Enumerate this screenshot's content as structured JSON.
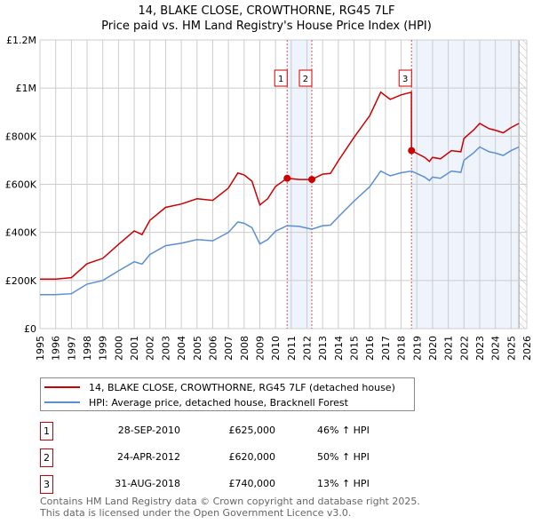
{
  "title": "14, BLAKE CLOSE, CROWTHORNE, RG45 7LF",
  "subtitle": "Price paid vs. HM Land Registry's House Price Index (HPI)",
  "chart_data": {
    "type": "line",
    "title": "14, BLAKE CLOSE, CROWTHORNE, RG45 7LF",
    "subtitle": "Price paid vs. HM Land Registry's House Price Index (HPI)",
    "xlim": [
      1995,
      2026
    ],
    "ylim": [
      0,
      1200000
    ],
    "yticks": [
      0,
      200000,
      400000,
      600000,
      800000,
      1000000,
      1200000
    ],
    "ytick_labels": [
      "£0",
      "£200K",
      "£400K",
      "£600K",
      "£800K",
      "£1M",
      "£1.2M"
    ],
    "xticks": [
      "1995",
      "1996",
      "1997",
      "1998",
      "1999",
      "2000",
      "2001",
      "2002",
      "2003",
      "2004",
      "2005",
      "2006",
      "2007",
      "2008",
      "2009",
      "2010",
      "2011",
      "2012",
      "2013",
      "2014",
      "2015",
      "2016",
      "2017",
      "2018",
      "2019",
      "2020",
      "2021",
      "2022",
      "2023",
      "2024",
      "2025",
      "2026"
    ],
    "grid": true,
    "series": [
      {
        "name": "14, BLAKE CLOSE, CROWTHORNE, RG45 7LF (detached house)",
        "color": "#cc0000",
        "x": [
          1995,
          1996,
          1997,
          1998,
          1999,
          2000,
          2001,
          2001.5,
          2002,
          2003,
          2004,
          2005,
          2006,
          2007,
          2007.6,
          2008,
          2008.5,
          2009,
          2009.5,
          2010,
          2010.74,
          2011.5,
          2012.31,
          2013,
          2013.5,
          2014,
          2015,
          2016,
          2016.7,
          2017.3,
          2018,
          2018.65,
          2018.66,
          2019.5,
          2019.8,
          2020,
          2020.5,
          2021.2,
          2021.8,
          2022,
          2022.6,
          2023,
          2023.6,
          2024,
          2024.5,
          2025,
          2025.5
        ],
        "y": [
          206000,
          206000,
          212000,
          270000,
          292000,
          350000,
          406000,
          391000,
          450000,
          504000,
          518000,
          540000,
          533000,
          584000,
          647000,
          639000,
          613000,
          514000,
          540000,
          591000,
          625000,
          620000,
          620000,
          642000,
          645000,
          698000,
          795000,
          885000,
          983000,
          953000,
          972000,
          983000,
          740000,
          712000,
          695000,
          712000,
          706000,
          740000,
          735000,
          791000,
          825000,
          853000,
          831000,
          825000,
          814000,
          836000,
          853000
        ]
      },
      {
        "name": "HPI: Average price, detached house, Bracknell Forest",
        "color": "#5b8fd4",
        "x": [
          1995,
          1996,
          1997,
          1998,
          1999,
          2000,
          2001,
          2001.5,
          2002,
          2003,
          2004,
          2005,
          2006,
          2007,
          2007.6,
          2008,
          2008.5,
          2009,
          2009.5,
          2010,
          2010.74,
          2011.5,
          2012.31,
          2013,
          2013.5,
          2014,
          2015,
          2016,
          2016.7,
          2017.3,
          2018,
          2018.66,
          2019.5,
          2019.8,
          2020,
          2020.5,
          2021.2,
          2021.8,
          2022,
          2022.6,
          2023,
          2023.6,
          2024,
          2024.5,
          2025,
          2025.5
        ],
        "y": [
          141000,
          141000,
          145000,
          185000,
          200000,
          240000,
          278000,
          268000,
          308000,
          345000,
          355000,
          370000,
          365000,
          400000,
          443000,
          438000,
          420000,
          352000,
          370000,
          405000,
          428000,
          425000,
          413000,
          428000,
          430000,
          465000,
          530000,
          590000,
          655000,
          635000,
          648000,
          655000,
          630000,
          615000,
          630000,
          625000,
          655000,
          650000,
          700000,
          730000,
          755000,
          735000,
          730000,
          720000,
          740000,
          755000
        ]
      }
    ],
    "sales": [
      {
        "label": "1",
        "x": 2010.74,
        "y": 625000,
        "date": "28-SEP-2010",
        "price": "£625,000",
        "hpi": "46% ↑ HPI"
      },
      {
        "label": "2",
        "x": 2012.31,
        "y": 620000,
        "date": "24-APR-2012",
        "price": "£620,000",
        "hpi": "50% ↑ HPI"
      },
      {
        "label": "3",
        "x": 2018.66,
        "y": 740000,
        "date": "31-AUG-2018",
        "price": "£740,000",
        "hpi": "13% ↑ HPI"
      }
    ],
    "shaded_ranges": [
      [
        2010.74,
        2012.31
      ],
      [
        2018.66,
        2025.5
      ]
    ],
    "hatched_from": 2025.5,
    "legend_placement": "below"
  },
  "legend": {
    "property": "14, BLAKE CLOSE, CROWTHORNE, RG45 7LF (detached house)",
    "hpi": "HPI: Average price, detached house, Bracknell Forest"
  },
  "footer": {
    "line1": "Contains HM Land Registry data © Crown copyright and database right 2025.",
    "line2": "This data is licensed under the Open Government Licence v3.0."
  }
}
